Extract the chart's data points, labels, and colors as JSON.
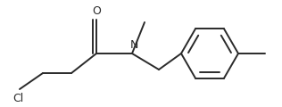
{
  "bg_color": "#ffffff",
  "line_color": "#2a2a2a",
  "lw": 1.4,
  "figsize": [
    3.16,
    1.2
  ],
  "dpi": 100,
  "font_size": 9,
  "Cl_label": "Cl",
  "O_label": "O",
  "N_label": "N"
}
